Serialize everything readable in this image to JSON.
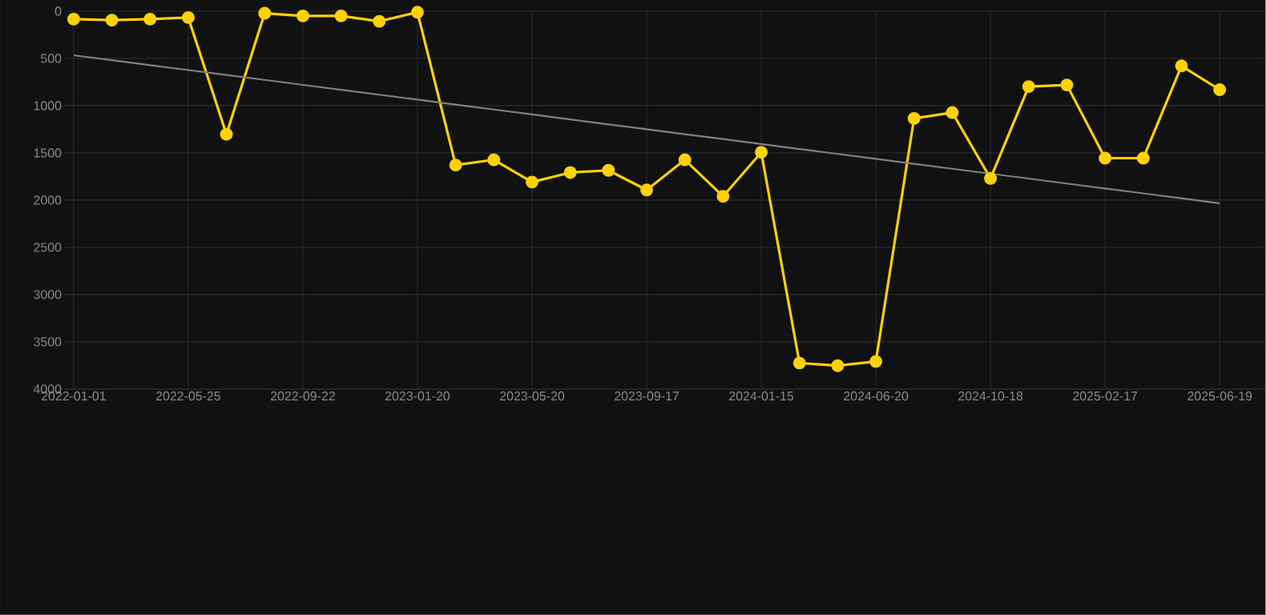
{
  "chart_data": {
    "type": "line",
    "categories": [
      "2022-01-01",
      null,
      null,
      "2022-05-25",
      null,
      null,
      "2022-09-22",
      null,
      null,
      "2023-01-20",
      null,
      null,
      "2023-05-20",
      null,
      null,
      "2023-09-17",
      null,
      null,
      "2024-01-15",
      null,
      null,
      "2024-06-20",
      null,
      null,
      "2024-10-18",
      null,
      null,
      "2025-02-17",
      null,
      null,
      "2025-06-19"
    ],
    "ylim": [
      4000,
      0
    ],
    "yticks": [
      0,
      500,
      1000,
      1500,
      2000,
      2500,
      3000,
      3500,
      4000
    ],
    "grid": true,
    "series": [
      {
        "color": "#ffd200",
        "marker": "circle",
        "values": [
          84,
          95,
          84,
          67,
          1303,
          22,
          50,
          50,
          107,
          11,
          1629,
          1573,
          1809,
          1708,
          1685,
          1893,
          1573,
          1960,
          1494,
          3725,
          3753,
          3708,
          1135,
          1073,
          1770,
          798,
          781,
          1556,
          1556,
          579,
          831
        ]
      },
      {
        "type": "line",
        "color": "#808080",
        "marker": "none",
        "values": [
          466,
          518,
          571,
          623,
          675,
          727,
          780,
          832,
          884,
          936,
          989,
          1041,
          1093,
          1145,
          1198,
          1250,
          1302,
          1354,
          1407,
          1459,
          1511,
          1563,
          1616,
          1668,
          1720,
          1772,
          1825,
          1877,
          1929,
          1981,
          2034
        ]
      }
    ]
  }
}
